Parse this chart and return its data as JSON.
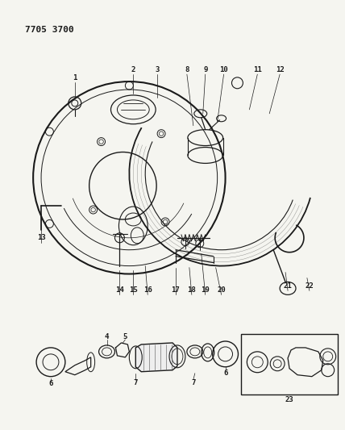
{
  "title_code": "7705 3700",
  "bg_color": "#f5f5f0",
  "line_color": "#1a1a1a",
  "figsize": [
    4.28,
    5.33
  ],
  "dpi": 100
}
